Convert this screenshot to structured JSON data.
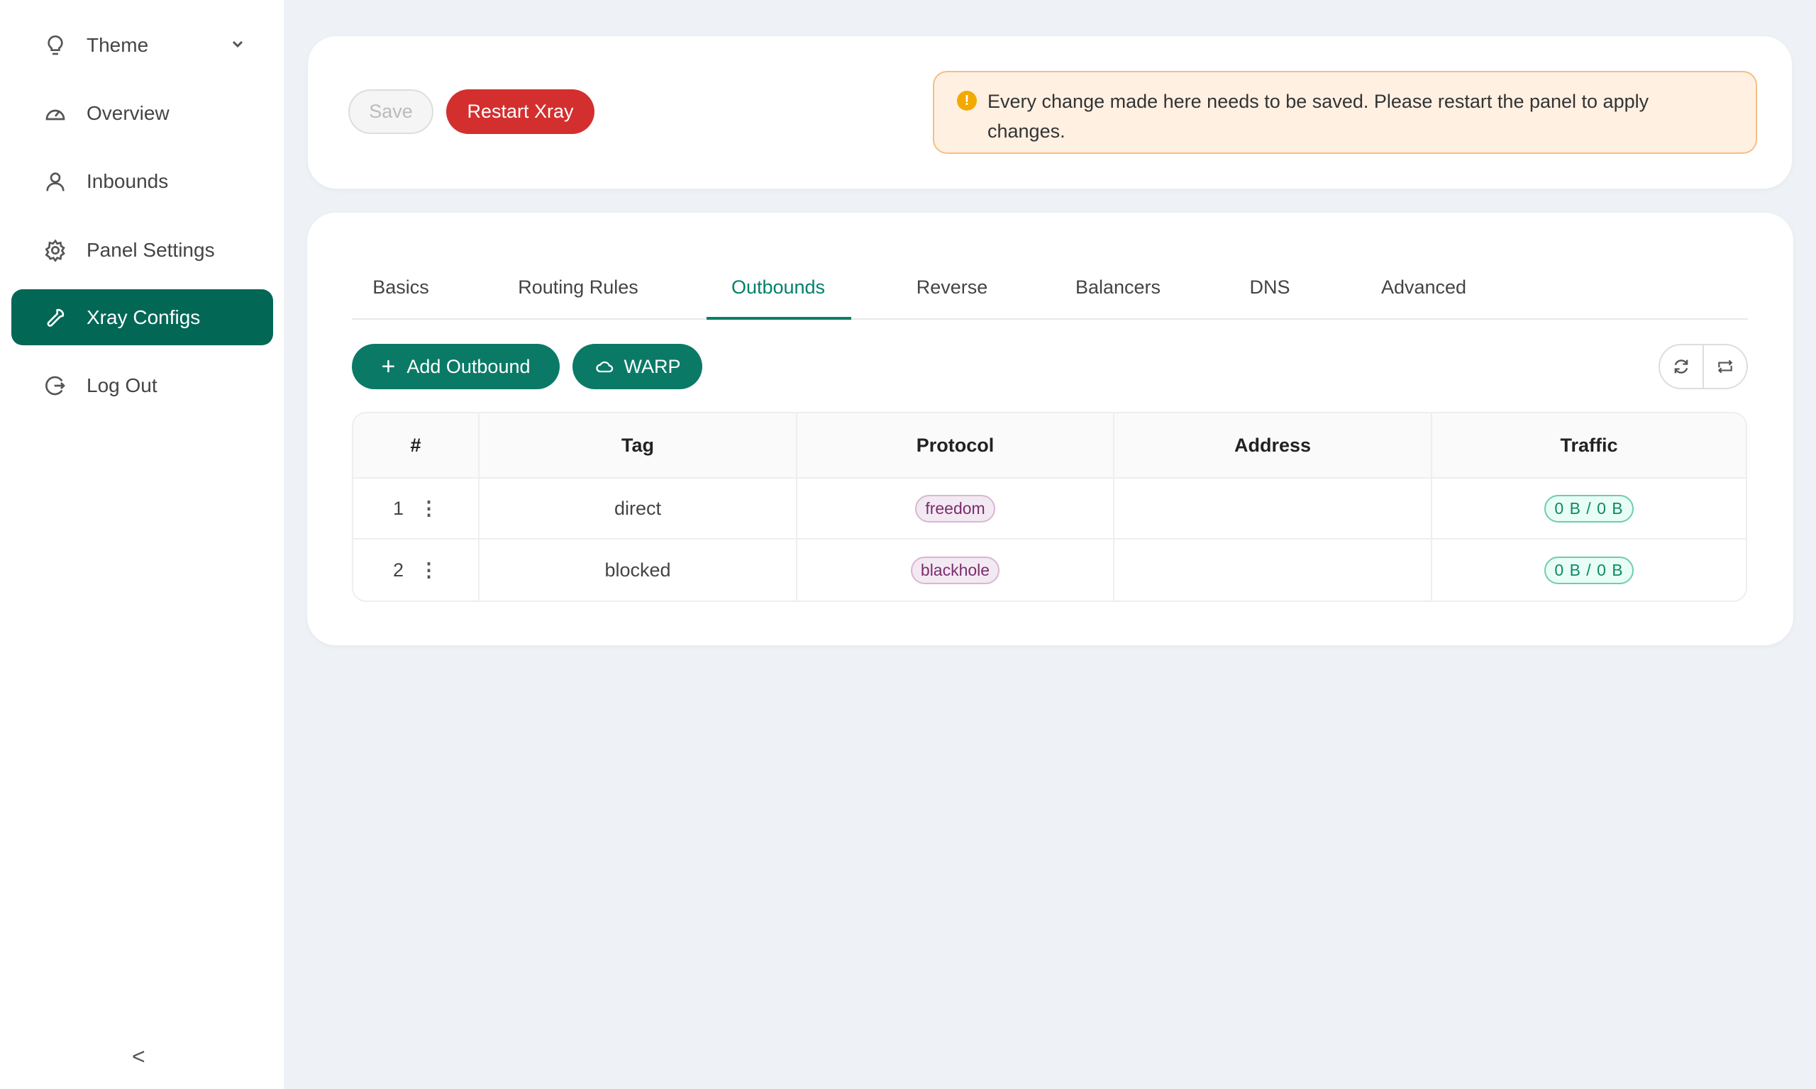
{
  "sidebar": {
    "items": [
      {
        "label": "Theme",
        "icon": "bulb-icon"
      },
      {
        "label": "Overview",
        "icon": "dashboard-icon"
      },
      {
        "label": "Inbounds",
        "icon": "user-icon"
      },
      {
        "label": "Panel Settings",
        "icon": "gear-icon"
      },
      {
        "label": "Xray Configs",
        "icon": "wrench-icon",
        "active": true
      },
      {
        "label": "Log Out",
        "icon": "logout-icon"
      }
    ],
    "collapse": "<"
  },
  "toolbar": {
    "save": "Save",
    "restart": "Restart Xray"
  },
  "alert": {
    "text": "Every change made here needs to be saved. Please restart the panel to apply changes."
  },
  "tabs": [
    "Basics",
    "Routing Rules",
    "Outbounds",
    "Reverse",
    "Balancers",
    "DNS",
    "Advanced"
  ],
  "active_tab": "Outbounds",
  "actions": {
    "add": "Add Outbound",
    "warp": "WARP"
  },
  "table": {
    "headers": [
      "#",
      "Tag",
      "Protocol",
      "Address",
      "Traffic"
    ],
    "rows": [
      {
        "num": "1",
        "tag": "direct",
        "protocol": "freedom",
        "address": "",
        "traffic": "0 B / 0 B"
      },
      {
        "num": "2",
        "tag": "blocked",
        "protocol": "blackhole",
        "address": "",
        "traffic": "0 B / 0 B"
      }
    ]
  },
  "colors": {
    "primary": "#036756",
    "danger": "#d32f2f",
    "alert_bg": "#fff0e2"
  }
}
